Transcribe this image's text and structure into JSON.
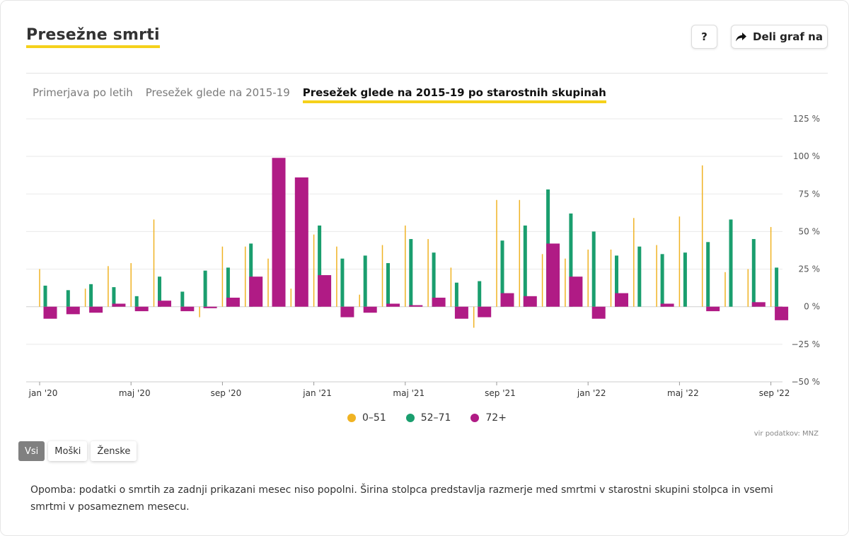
{
  "header": {
    "title": "Presežne smrti",
    "help_label": "?",
    "share_label": "Deli graf na"
  },
  "tabs": [
    {
      "label": "Primerjava po letih",
      "active": false
    },
    {
      "label": "Presežek glede na 2015-19",
      "active": false
    },
    {
      "label": "Presežek glede na 2015-19 po starostnih skupinah",
      "active": true
    }
  ],
  "chart_data": {
    "type": "bar",
    "y_tick_labels": [
      "125 %",
      "100 %",
      "75 %",
      "50 %",
      "25 %",
      "0 %",
      "−25 %",
      "−50 %"
    ],
    "y_ticks": [
      125,
      100,
      75,
      50,
      25,
      0,
      -25,
      -50
    ],
    "ylim": [
      -50,
      125
    ],
    "x_tick_labels": [
      {
        "label": "jan '20",
        "month": 0
      },
      {
        "label": "maj '20",
        "month": 4
      },
      {
        "label": "sep '20",
        "month": 8
      },
      {
        "label": "jan '21",
        "month": 12
      },
      {
        "label": "maj '21",
        "month": 16
      },
      {
        "label": "sep '21",
        "month": 20
      },
      {
        "label": "jan '22",
        "month": 24
      },
      {
        "label": "maj '22",
        "month": 28
      },
      {
        "label": "sep '22",
        "month": 32
      }
    ],
    "series": [
      {
        "name": "0–51",
        "color": "#f0b323",
        "values": [
          25,
          0,
          12,
          27,
          29,
          58,
          0,
          -7,
          40,
          40,
          32,
          12,
          48,
          40,
          8,
          41,
          54,
          45,
          26,
          -14,
          71,
          71,
          35,
          32,
          38,
          38,
          59,
          41,
          60,
          94,
          23,
          25,
          53
        ]
      },
      {
        "name": "52–71",
        "color": "#1a9e6e",
        "values": [
          14,
          11,
          15,
          13,
          7,
          20,
          10,
          24,
          26,
          42,
          0,
          0,
          54,
          32,
          34,
          29,
          45,
          36,
          16,
          17,
          44,
          54,
          78,
          62,
          50,
          34,
          40,
          35,
          36,
          43,
          58,
          45,
          26
        ]
      },
      {
        "name": "72+",
        "color": "#b01b85",
        "values": [
          -8,
          -5,
          -4,
          2,
          -3,
          4,
          -3,
          -1,
          6,
          20,
          99,
          86,
          21,
          -7,
          -4,
          2,
          1,
          6,
          -8,
          -7,
          9,
          7,
          42,
          20,
          -8,
          9,
          0,
          2,
          0,
          -3,
          0,
          3,
          -9
        ]
      }
    ],
    "legend_position": "bottom",
    "grid": true
  },
  "source": "vir podatkov: MNZ",
  "filters": [
    {
      "label": "Vsi",
      "active": true
    },
    {
      "label": "Moški",
      "active": false
    },
    {
      "label": "Ženske",
      "active": false
    }
  ],
  "note": "Opomba: podatki o smrtih za zadnji prikazani mesec niso popolni. Širina stolpca predstavlja razmerje med smrtmi v starostni skupini stolpca in vsemi smrtmi v posameznem mesecu."
}
